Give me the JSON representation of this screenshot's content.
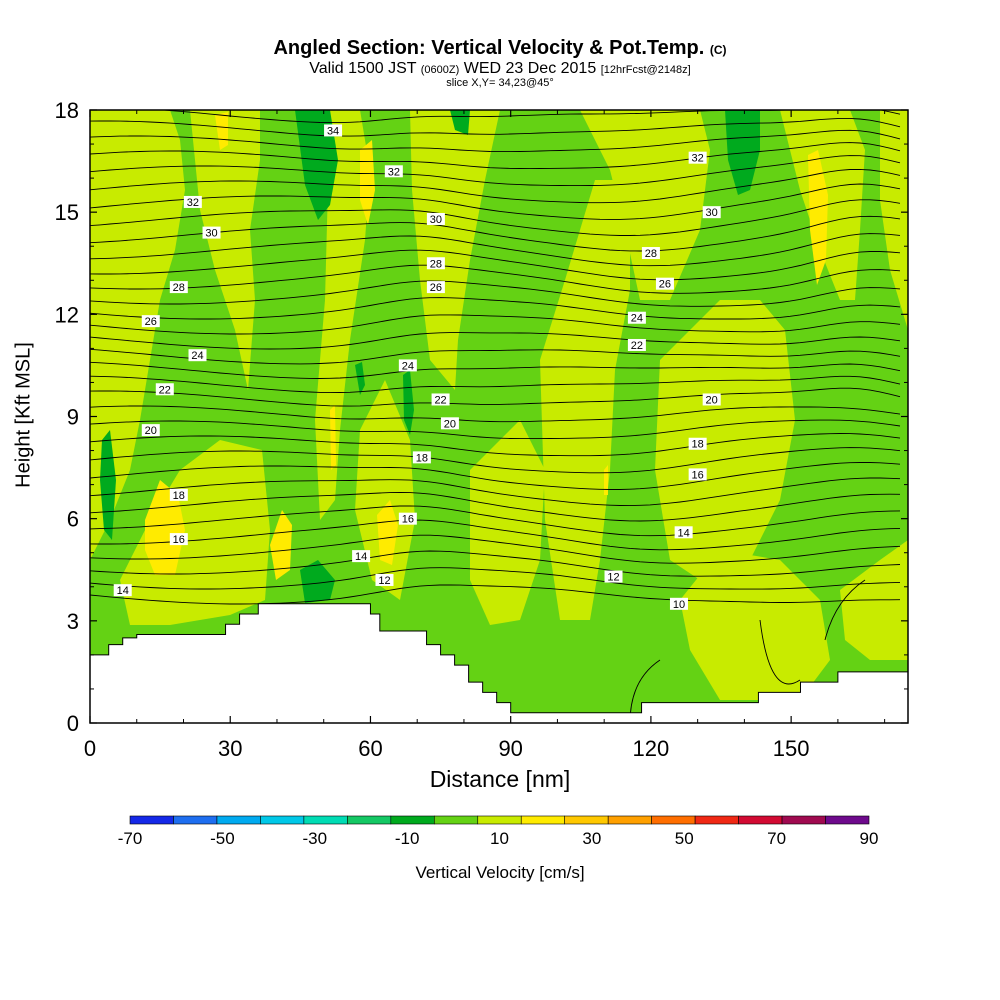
{
  "header": {
    "title": "Angled Section: Vertical Velocity & Pot.Temp.",
    "title_suffix": "(C)",
    "subtitle_a": "Valid 1500 JST",
    "subtitle_b": "(0600Z)",
    "subtitle_c": "WED 23 Dec 2015",
    "subtitle_d": "[12hrFcst@2148z]",
    "slice": "slice X,Y= 34,23@45°"
  },
  "chart_data": {
    "type": "heatmap",
    "title": "Angled Section: Vertical Velocity & Pot.Temp.",
    "xlabel": "Distance [nm]",
    "ylabel": "Height [Kft MSL]",
    "xlim": [
      0,
      175
    ],
    "ylim": [
      0,
      18
    ],
    "x_ticks": [
      0,
      30,
      60,
      90,
      120,
      150
    ],
    "y_ticks": [
      0,
      3,
      6,
      9,
      12,
      15,
      18
    ],
    "filled_field": "Vertical Velocity [cm/s]",
    "colorbar": {
      "label": "Vertical Velocity [cm/s]",
      "tick_values": [
        -70,
        -50,
        -30,
        -10,
        10,
        30,
        50,
        70,
        90
      ],
      "levels": [
        -70,
        -60,
        -50,
        -40,
        -30,
        -20,
        -10,
        0,
        10,
        20,
        30,
        40,
        50,
        60,
        70,
        80,
        90
      ],
      "colors": [
        "#1428e8",
        "#1e6ef0",
        "#00aaf0",
        "#00c8e8",
        "#00dcb4",
        "#14c864",
        "#00aa1e",
        "#64d214",
        "#c8eb00",
        "#ffeb00",
        "#ffc800",
        "#ffa000",
        "#ff6e00",
        "#f02814",
        "#d20a32",
        "#a00a50",
        "#6e0a8c"
      ]
    },
    "colors": {
      "background_green": "#64d214",
      "light_green": "#c8eb00",
      "dark_green": "#00aa1e",
      "yellow": "#ffeb00",
      "terrain": "#ffffff"
    },
    "terrain_profile": {
      "x": [
        0,
        4,
        4,
        7,
        7,
        10,
        10,
        29,
        29,
        32,
        32,
        36,
        36,
        60,
        60,
        62,
        62,
        72,
        72,
        75,
        75,
        78,
        78,
        81,
        81,
        84,
        84,
        87,
        87,
        90,
        90,
        118,
        118,
        130,
        130,
        143,
        143,
        152,
        152,
        160,
        160,
        166,
        166,
        175
      ],
      "y": [
        2.0,
        2.0,
        2.3,
        2.3,
        2.5,
        2.5,
        2.6,
        2.6,
        2.9,
        2.9,
        3.2,
        3.2,
        3.5,
        3.5,
        3.2,
        3.2,
        2.7,
        2.7,
        2.3,
        2.3,
        2.0,
        2.0,
        1.7,
        1.7,
        1.2,
        1.2,
        0.9,
        0.9,
        0.6,
        0.6,
        0.3,
        0.3,
        0.6,
        0.6,
        0.6,
        0.6,
        0.9,
        0.9,
        1.2,
        1.2,
        1.5,
        1.5,
        1.5,
        1.5
      ]
    },
    "contour_labels": [
      {
        "text": "34",
        "x": 52,
        "y": 17.4
      },
      {
        "text": "32",
        "x": 65,
        "y": 16.2
      },
      {
        "text": "32",
        "x": 130,
        "y": 16.6
      },
      {
        "text": "32",
        "x": 22,
        "y": 15.3
      },
      {
        "text": "30",
        "x": 133,
        "y": 15.0
      },
      {
        "text": "30",
        "x": 74,
        "y": 14.8
      },
      {
        "text": "30",
        "x": 26,
        "y": 14.4
      },
      {
        "text": "28",
        "x": 120,
        "y": 13.8
      },
      {
        "text": "28",
        "x": 74,
        "y": 13.5
      },
      {
        "text": "28",
        "x": 19,
        "y": 12.8
      },
      {
        "text": "26",
        "x": 123,
        "y": 12.9
      },
      {
        "text": "26",
        "x": 74,
        "y": 12.8
      },
      {
        "text": "26",
        "x": 13,
        "y": 11.8
      },
      {
        "text": "24",
        "x": 117,
        "y": 11.9
      },
      {
        "text": "24",
        "x": 23,
        "y": 10.8
      },
      {
        "text": "24",
        "x": 68,
        "y": 10.5
      },
      {
        "text": "22",
        "x": 117,
        "y": 11.1
      },
      {
        "text": "22",
        "x": 16,
        "y": 9.8
      },
      {
        "text": "22",
        "x": 75,
        "y": 9.5
      },
      {
        "text": "20",
        "x": 133,
        "y": 9.5
      },
      {
        "text": "20",
        "x": 77,
        "y": 8.8
      },
      {
        "text": "20",
        "x": 13,
        "y": 8.6
      },
      {
        "text": "18",
        "x": 130,
        "y": 8.2
      },
      {
        "text": "18",
        "x": 71,
        "y": 7.8
      },
      {
        "text": "18",
        "x": 19,
        "y": 6.7
      },
      {
        "text": "16",
        "x": 130,
        "y": 7.3
      },
      {
        "text": "16",
        "x": 68,
        "y": 6.0
      },
      {
        "text": "16",
        "x": 19,
        "y": 5.4
      },
      {
        "text": "14",
        "x": 127,
        "y": 5.6
      },
      {
        "text": "14",
        "x": 58,
        "y": 4.9
      },
      {
        "text": "14",
        "x": 7,
        "y": 3.9
      },
      {
        "text": "12",
        "x": 112,
        "y": 4.3
      },
      {
        "text": "12",
        "x": 63,
        "y": 4.2
      },
      {
        "text": "10",
        "x": 126,
        "y": 3.5
      }
    ]
  }
}
